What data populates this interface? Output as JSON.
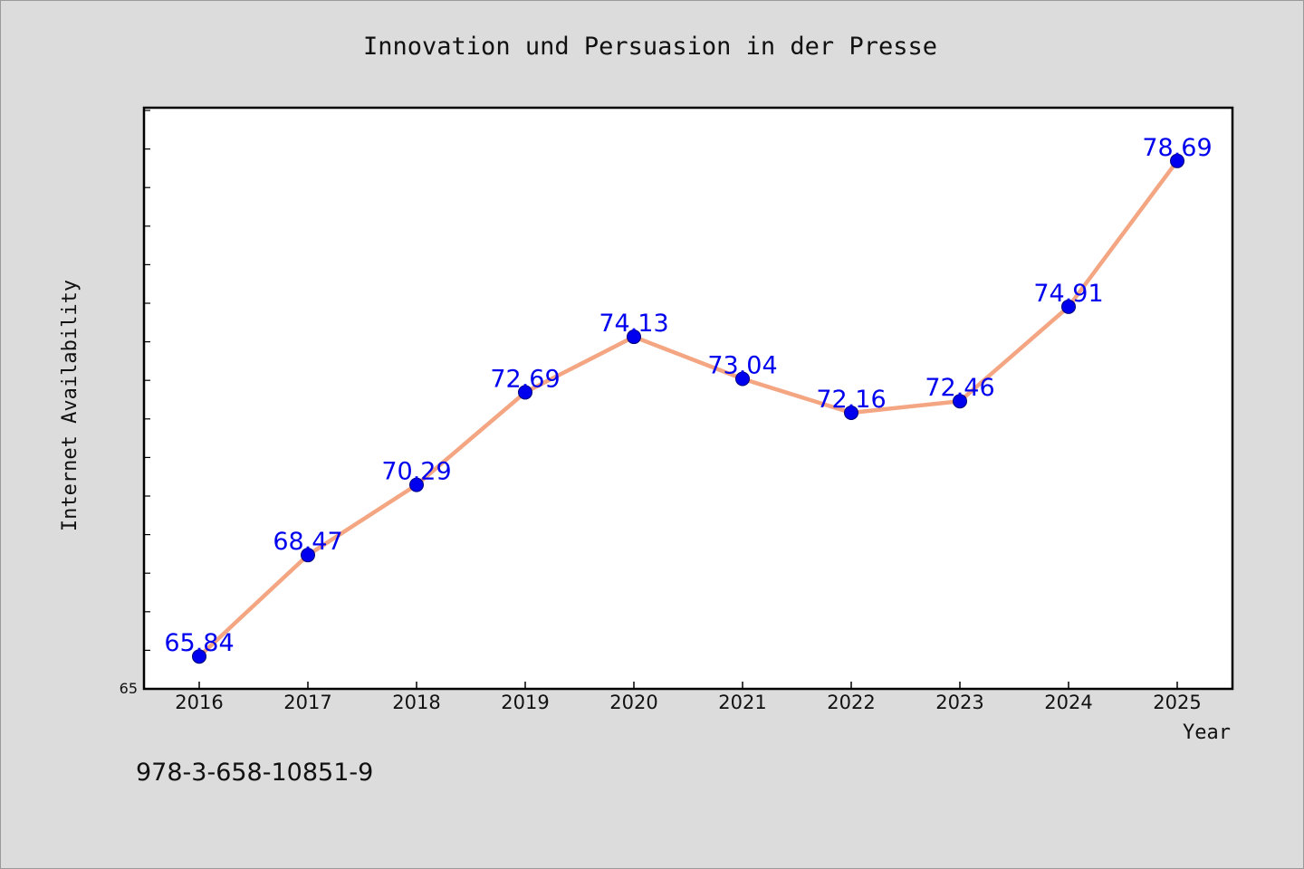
{
  "chart_data": {
    "type": "line",
    "title": "Innovation und Persuasion in der Presse",
    "xlabel": "Year",
    "ylabel": "Internet Availability",
    "x": [
      "2016",
      "2017",
      "2018",
      "2019",
      "2020",
      "2021",
      "2022",
      "2023",
      "2024",
      "2025"
    ],
    "series": [
      {
        "values": [
          65.84,
          68.47,
          70.29,
          72.69,
          74.13,
          73.04,
          72.16,
          72.46,
          74.91,
          78.69
        ],
        "data_labels": [
          "65.84",
          "68.47",
          "70.29",
          "72.69",
          "74.13",
          "73.04",
          "72.16",
          "72.46",
          "74.91",
          "78.69"
        ]
      }
    ],
    "ylim": [
      65,
      80
    ],
    "ytick_labels": [
      "65"
    ],
    "grid": false,
    "legend": "none",
    "colors": {
      "line": "#f4a582",
      "marker": "#0000ee",
      "data_label": "#0000ee",
      "plot_background": "#ffffff",
      "figure_background": "#dcdcdc"
    }
  },
  "footnote": "978-3-658-10851-9"
}
